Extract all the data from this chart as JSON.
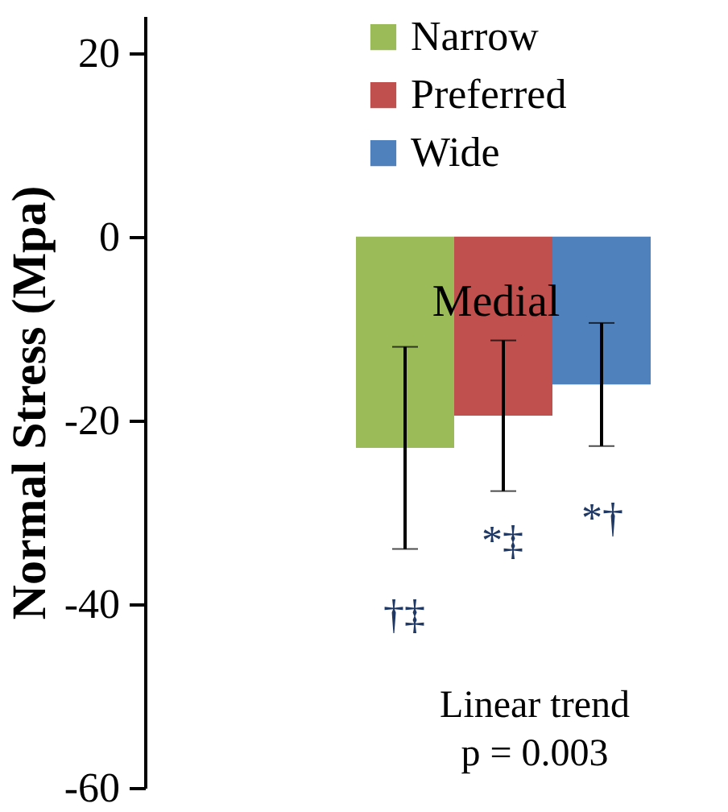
{
  "chart_data": {
    "type": "bar",
    "ylabel": "Normal Stress (Mpa)",
    "categories": [
      null
    ],
    "series": [
      {
        "name": "Narrow",
        "color": "#9bbb59",
        "values": [
          -23
        ],
        "errors": [
          11
        ]
      },
      {
        "name": "Preferred",
        "color": "#c0504d",
        "values": [
          -19.5
        ],
        "errors": [
          8.2
        ]
      },
      {
        "name": "Wide",
        "color": "#4f81bd",
        "values": [
          -16.1
        ],
        "errors": [
          6.7
        ]
      }
    ],
    "ylim": [
      -60,
      24
    ],
    "yticks": [
      -60,
      -40,
      -20,
      0,
      20
    ],
    "grid": false,
    "legend": "top",
    "annotations": [
      "Medial",
      "†‡",
      "*‡",
      "*†",
      "Linear trend",
      "p = 0.003"
    ]
  }
}
